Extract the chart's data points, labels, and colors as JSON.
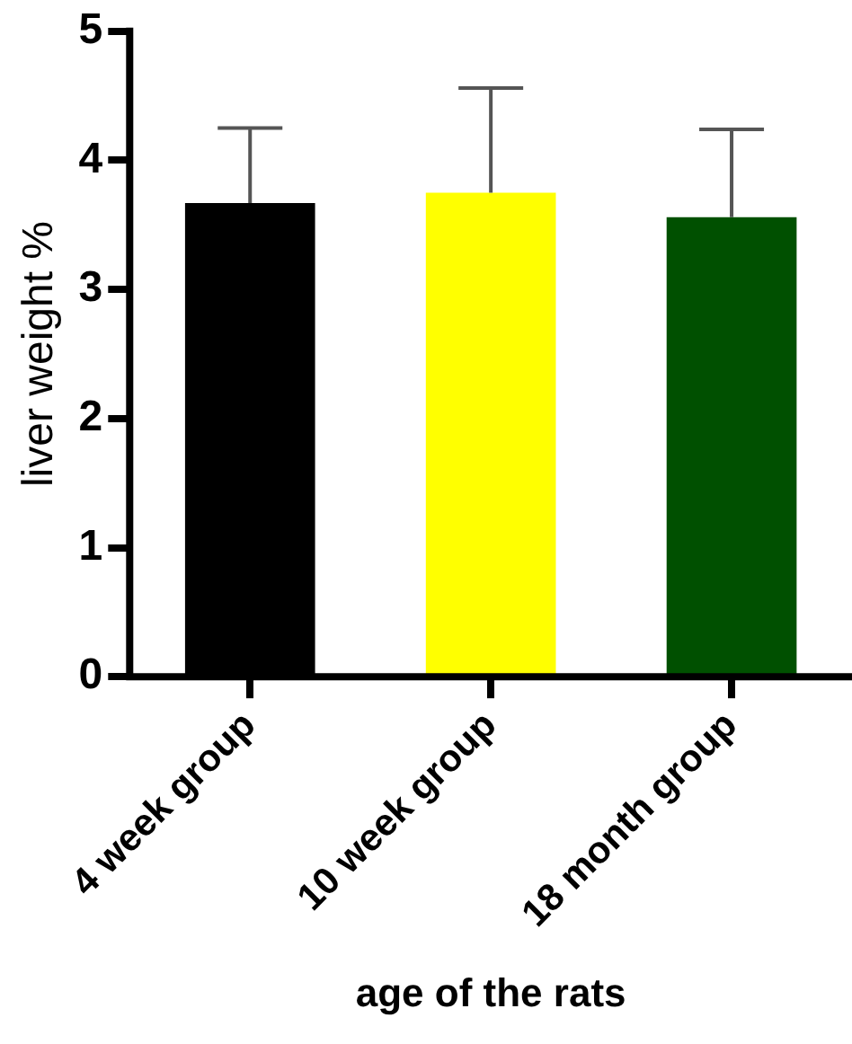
{
  "chart_data": {
    "type": "bar",
    "xlabel": "age of the rats",
    "ylabel": "liver weight %",
    "categories": [
      "4 week group",
      "10 week group",
      "18 month group"
    ],
    "values": [
      3.67,
      3.75,
      3.56
    ],
    "colors": [
      "#000000",
      "#ffff00",
      "#005000"
    ],
    "errors": [
      [
        3.67,
        4.25
      ],
      [
        3.75,
        4.56
      ],
      [
        3.56,
        4.24
      ]
    ],
    "ylim": [
      0,
      5
    ],
    "yticks": [
      0,
      1,
      2,
      3,
      4,
      5
    ],
    "grid": false,
    "legend": false
  }
}
